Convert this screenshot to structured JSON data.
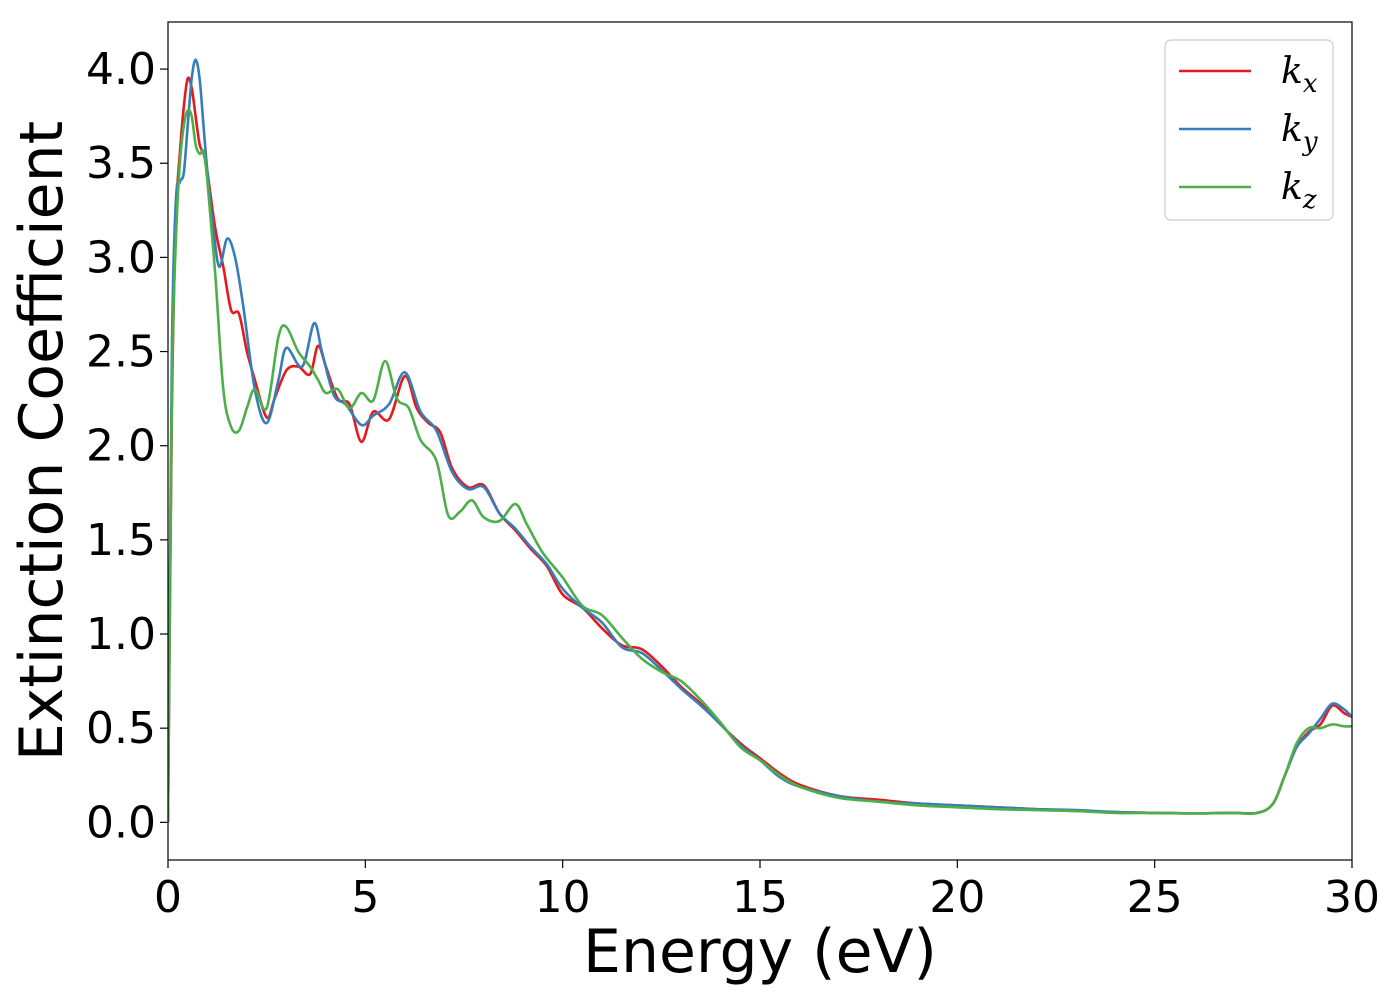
{
  "chart_data": {
    "type": "line",
    "title": "",
    "xlabel": "Energy (eV)",
    "ylabel": "Extinction Coefficient",
    "xlim": [
      0,
      30
    ],
    "ylim": [
      -0.2,
      4.25
    ],
    "xticks": [
      0,
      5,
      10,
      15,
      20,
      25,
      30
    ],
    "xtick_labels": [
      "0",
      "5",
      "10",
      "15",
      "20",
      "25",
      "30"
    ],
    "yticks": [
      0.0,
      0.5,
      1.0,
      1.5,
      2.0,
      2.5,
      3.0,
      3.5,
      4.0
    ],
    "ytick_labels": [
      "0.0",
      "0.5",
      "1.0",
      "1.5",
      "2.0",
      "2.5",
      "3.0",
      "3.5",
      "4.0"
    ],
    "grid": false,
    "legend_position": "top-right",
    "series": [
      {
        "name": "k",
        "subscript": "x",
        "color": "#e41a1c",
        "points": [
          [
            0,
            0.0
          ],
          [
            0.1,
            2.2
          ],
          [
            0.2,
            3.2
          ],
          [
            0.3,
            3.55
          ],
          [
            0.4,
            3.8
          ],
          [
            0.5,
            3.95
          ],
          [
            0.6,
            3.9
          ],
          [
            0.7,
            3.75
          ],
          [
            0.8,
            3.6
          ],
          [
            0.9,
            3.55
          ],
          [
            1.0,
            3.45
          ],
          [
            1.2,
            3.15
          ],
          [
            1.4,
            2.95
          ],
          [
            1.6,
            2.72
          ],
          [
            1.8,
            2.7
          ],
          [
            2.0,
            2.5
          ],
          [
            2.2,
            2.35
          ],
          [
            2.5,
            2.15
          ],
          [
            2.7,
            2.25
          ],
          [
            3.0,
            2.4
          ],
          [
            3.3,
            2.42
          ],
          [
            3.6,
            2.38
          ],
          [
            3.8,
            2.53
          ],
          [
            4.0,
            2.42
          ],
          [
            4.3,
            2.25
          ],
          [
            4.6,
            2.22
          ],
          [
            4.9,
            2.02
          ],
          [
            5.2,
            2.18
          ],
          [
            5.6,
            2.14
          ],
          [
            6.0,
            2.37
          ],
          [
            6.3,
            2.2
          ],
          [
            6.6,
            2.12
          ],
          [
            6.9,
            2.07
          ],
          [
            7.2,
            1.88
          ],
          [
            7.6,
            1.78
          ],
          [
            8.0,
            1.79
          ],
          [
            8.4,
            1.64
          ],
          [
            8.8,
            1.55
          ],
          [
            9.2,
            1.45
          ],
          [
            9.6,
            1.36
          ],
          [
            10.0,
            1.21
          ],
          [
            10.5,
            1.14
          ],
          [
            11.0,
            1.03
          ],
          [
            11.5,
            0.94
          ],
          [
            12.0,
            0.92
          ],
          [
            12.5,
            0.83
          ],
          [
            13.0,
            0.72
          ],
          [
            13.5,
            0.63
          ],
          [
            14.0,
            0.52
          ],
          [
            14.5,
            0.42
          ],
          [
            15.0,
            0.34
          ],
          [
            15.5,
            0.26
          ],
          [
            16.0,
            0.2
          ],
          [
            17.0,
            0.14
          ],
          [
            18.0,
            0.12
          ],
          [
            19.0,
            0.1
          ],
          [
            20.0,
            0.09
          ],
          [
            21.0,
            0.08
          ],
          [
            22.0,
            0.07
          ],
          [
            23.0,
            0.06
          ],
          [
            24.0,
            0.055
          ],
          [
            25.0,
            0.05
          ],
          [
            26.0,
            0.048
          ],
          [
            27.0,
            0.05
          ],
          [
            27.6,
            0.05
          ],
          [
            28.0,
            0.1
          ],
          [
            28.3,
            0.25
          ],
          [
            28.6,
            0.4
          ],
          [
            28.9,
            0.48
          ],
          [
            29.2,
            0.52
          ],
          [
            29.5,
            0.62
          ],
          [
            29.8,
            0.58
          ],
          [
            30.0,
            0.56
          ]
        ]
      },
      {
        "name": "k",
        "subscript": "y",
        "color": "#377eb8",
        "points": [
          [
            0,
            0.0
          ],
          [
            0.1,
            2.5
          ],
          [
            0.2,
            3.3
          ],
          [
            0.3,
            3.4
          ],
          [
            0.4,
            3.45
          ],
          [
            0.5,
            3.7
          ],
          [
            0.6,
            3.95
          ],
          [
            0.7,
            4.05
          ],
          [
            0.8,
            3.95
          ],
          [
            0.9,
            3.7
          ],
          [
            1.0,
            3.45
          ],
          [
            1.15,
            3.15
          ],
          [
            1.3,
            2.95
          ],
          [
            1.5,
            3.1
          ],
          [
            1.7,
            3.0
          ],
          [
            1.9,
            2.75
          ],
          [
            2.2,
            2.3
          ],
          [
            2.5,
            2.12
          ],
          [
            2.8,
            2.35
          ],
          [
            3.0,
            2.52
          ],
          [
            3.4,
            2.42
          ],
          [
            3.7,
            2.65
          ],
          [
            3.9,
            2.5
          ],
          [
            4.2,
            2.27
          ],
          [
            4.5,
            2.22
          ],
          [
            4.9,
            2.11
          ],
          [
            5.2,
            2.16
          ],
          [
            5.6,
            2.22
          ],
          [
            6.0,
            2.39
          ],
          [
            6.4,
            2.18
          ],
          [
            6.8,
            2.08
          ],
          [
            7.2,
            1.86
          ],
          [
            7.6,
            1.77
          ],
          [
            8.0,
            1.78
          ],
          [
            8.4,
            1.64
          ],
          [
            8.8,
            1.56
          ],
          [
            9.2,
            1.46
          ],
          [
            9.6,
            1.37
          ],
          [
            10.0,
            1.24
          ],
          [
            10.5,
            1.14
          ],
          [
            11.0,
            1.06
          ],
          [
            11.5,
            0.93
          ],
          [
            12.0,
            0.9
          ],
          [
            12.5,
            0.81
          ],
          [
            13.0,
            0.71
          ],
          [
            13.5,
            0.62
          ],
          [
            14.0,
            0.52
          ],
          [
            14.5,
            0.41
          ],
          [
            15.0,
            0.33
          ],
          [
            15.5,
            0.24
          ],
          [
            16.0,
            0.19
          ],
          [
            17.0,
            0.14
          ],
          [
            18.0,
            0.11
          ],
          [
            19.0,
            0.1
          ],
          [
            20.0,
            0.09
          ],
          [
            21.0,
            0.08
          ],
          [
            22.0,
            0.07
          ],
          [
            23.0,
            0.065
          ],
          [
            24.0,
            0.055
          ],
          [
            25.0,
            0.05
          ],
          [
            26.0,
            0.048
          ],
          [
            27.0,
            0.05
          ],
          [
            27.6,
            0.05
          ],
          [
            28.0,
            0.1
          ],
          [
            28.3,
            0.25
          ],
          [
            28.6,
            0.4
          ],
          [
            28.9,
            0.47
          ],
          [
            29.2,
            0.55
          ],
          [
            29.5,
            0.63
          ],
          [
            29.8,
            0.6
          ],
          [
            30.0,
            0.56
          ]
        ]
      },
      {
        "name": "k",
        "subscript": "z",
        "color": "#4daf4a",
        "points": [
          [
            0,
            0.0
          ],
          [
            0.1,
            2.3
          ],
          [
            0.2,
            3.1
          ],
          [
            0.3,
            3.5
          ],
          [
            0.4,
            3.7
          ],
          [
            0.5,
            3.78
          ],
          [
            0.6,
            3.75
          ],
          [
            0.7,
            3.6
          ],
          [
            0.8,
            3.55
          ],
          [
            0.9,
            3.56
          ],
          [
            1.0,
            3.4
          ],
          [
            1.2,
            2.9
          ],
          [
            1.4,
            2.3
          ],
          [
            1.6,
            2.1
          ],
          [
            1.8,
            2.08
          ],
          [
            2.0,
            2.2
          ],
          [
            2.2,
            2.3
          ],
          [
            2.5,
            2.2
          ],
          [
            2.8,
            2.58
          ],
          [
            3.0,
            2.63
          ],
          [
            3.3,
            2.5
          ],
          [
            3.6,
            2.42
          ],
          [
            3.8,
            2.35
          ],
          [
            4.0,
            2.28
          ],
          [
            4.3,
            2.3
          ],
          [
            4.6,
            2.2
          ],
          [
            4.9,
            2.28
          ],
          [
            5.2,
            2.24
          ],
          [
            5.5,
            2.45
          ],
          [
            5.8,
            2.25
          ],
          [
            6.1,
            2.2
          ],
          [
            6.4,
            2.03
          ],
          [
            6.8,
            1.92
          ],
          [
            7.1,
            1.63
          ],
          [
            7.4,
            1.65
          ],
          [
            7.7,
            1.71
          ],
          [
            8.0,
            1.62
          ],
          [
            8.4,
            1.6
          ],
          [
            8.8,
            1.69
          ],
          [
            9.1,
            1.58
          ],
          [
            9.5,
            1.43
          ],
          [
            10.0,
            1.3
          ],
          [
            10.5,
            1.15
          ],
          [
            11.0,
            1.1
          ],
          [
            11.5,
            0.98
          ],
          [
            12.0,
            0.87
          ],
          [
            12.5,
            0.8
          ],
          [
            13.0,
            0.75
          ],
          [
            13.5,
            0.65
          ],
          [
            14.0,
            0.53
          ],
          [
            14.5,
            0.4
          ],
          [
            15.0,
            0.33
          ],
          [
            15.5,
            0.25
          ],
          [
            16.0,
            0.19
          ],
          [
            17.0,
            0.13
          ],
          [
            18.0,
            0.11
          ],
          [
            19.0,
            0.09
          ],
          [
            20.0,
            0.08
          ],
          [
            21.0,
            0.07
          ],
          [
            22.0,
            0.065
          ],
          [
            23.0,
            0.06
          ],
          [
            24.0,
            0.05
          ],
          [
            25.0,
            0.05
          ],
          [
            26.0,
            0.048
          ],
          [
            27.0,
            0.05
          ],
          [
            27.6,
            0.05
          ],
          [
            28.0,
            0.1
          ],
          [
            28.3,
            0.25
          ],
          [
            28.6,
            0.42
          ],
          [
            28.9,
            0.5
          ],
          [
            29.2,
            0.5
          ],
          [
            29.5,
            0.52
          ],
          [
            29.8,
            0.51
          ],
          [
            30.0,
            0.51
          ]
        ]
      }
    ]
  }
}
